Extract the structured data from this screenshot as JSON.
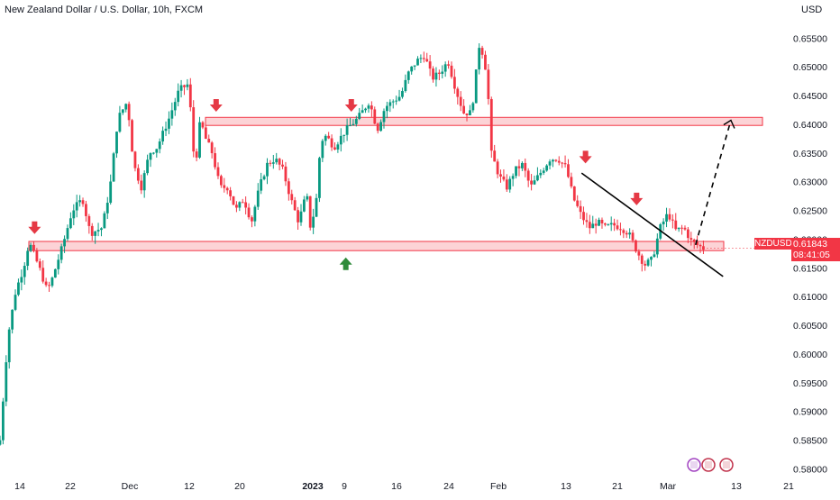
{
  "chart_data": {
    "type": "candlestick",
    "title": "New Zealand Dollar / U.S. Dollar, 10h, FXCM",
    "currency": "USD",
    "symbol": "NZDUSD",
    "last_price": "0.61843",
    "countdown": "08:41:05",
    "y_ticks": [
      "0.65500",
      "0.65000",
      "0.64500",
      "0.64000",
      "0.63500",
      "0.63000",
      "0.62500",
      "0.62000",
      "0.61500",
      "0.61000",
      "0.60500",
      "0.60000",
      "0.59500",
      "0.59000",
      "0.58500",
      "0.58000"
    ],
    "ylim": [
      0.5785,
      0.6585
    ],
    "x_tick_labels": [
      "14",
      "22",
      "Dec",
      "12",
      "20",
      "2023",
      "9",
      "16",
      "24",
      "Feb",
      "13",
      "21",
      "Mar",
      "13",
      "21"
    ],
    "close_path": [
      [
        0,
        0.585
      ],
      [
        0.01,
        0.603
      ],
      [
        0.02,
        0.611
      ],
      [
        0.03,
        0.615
      ],
      [
        0.037,
        0.6195
      ],
      [
        0.05,
        0.615
      ],
      [
        0.06,
        0.611
      ],
      [
        0.065,
        0.6125
      ],
      [
        0.08,
        0.619
      ],
      [
        0.092,
        0.625
      ],
      [
        0.105,
        0.627
      ],
      [
        0.115,
        0.621
      ],
      [
        0.13,
        0.622
      ],
      [
        0.14,
        0.629
      ],
      [
        0.15,
        0.641
      ],
      [
        0.162,
        0.644
      ],
      [
        0.17,
        0.633
      ],
      [
        0.18,
        0.629
      ],
      [
        0.19,
        0.635
      ],
      [
        0.2,
        0.636
      ],
      [
        0.215,
        0.641
      ],
      [
        0.228,
        0.646
      ],
      [
        0.24,
        0.647
      ],
      [
        0.248,
        0.632
      ],
      [
        0.255,
        0.641
      ],
      [
        0.26,
        0.638
      ],
      [
        0.27,
        0.635
      ],
      [
        0.28,
        0.629
      ],
      [
        0.29,
        0.629
      ],
      [
        0.3,
        0.625
      ],
      [
        0.31,
        0.627
      ],
      [
        0.32,
        0.623
      ],
      [
        0.33,
        0.629
      ],
      [
        0.34,
        0.633
      ],
      [
        0.35,
        0.634
      ],
      [
        0.36,
        0.632
      ],
      [
        0.37,
        0.627
      ],
      [
        0.38,
        0.623
      ],
      [
        0.39,
        0.628
      ],
      [
        0.395,
        0.622
      ],
      [
        0.402,
        0.626
      ],
      [
        0.408,
        0.637
      ],
      [
        0.415,
        0.638
      ],
      [
        0.425,
        0.636
      ],
      [
        0.44,
        0.639
      ],
      [
        0.455,
        0.641
      ],
      [
        0.47,
        0.644
      ],
      [
        0.48,
        0.639
      ],
      [
        0.49,
        0.643
      ],
      [
        0.5,
        0.644
      ],
      [
        0.51,
        0.645
      ],
      [
        0.52,
        0.649
      ],
      [
        0.53,
        0.651
      ],
      [
        0.54,
        0.652
      ],
      [
        0.55,
        0.648
      ],
      [
        0.56,
        0.649
      ],
      [
        0.57,
        0.651
      ],
      [
        0.58,
        0.646
      ],
      [
        0.59,
        0.642
      ],
      [
        0.6,
        0.642
      ],
      [
        0.61,
        0.654
      ],
      [
        0.615,
        0.652
      ],
      [
        0.62,
        0.648
      ],
      [
        0.625,
        0.635
      ],
      [
        0.635,
        0.631
      ],
      [
        0.645,
        0.629
      ],
      [
        0.655,
        0.632
      ],
      [
        0.665,
        0.633
      ],
      [
        0.675,
        0.629
      ],
      [
        0.69,
        0.632
      ],
      [
        0.7,
        0.634
      ],
      [
        0.71,
        0.634
      ],
      [
        0.72,
        0.6325
      ],
      [
        0.73,
        0.627
      ],
      [
        0.74,
        0.624
      ],
      [
        0.75,
        0.622
      ],
      [
        0.76,
        0.623
      ],
      [
        0.77,
        0.622
      ],
      [
        0.78,
        0.6225
      ],
      [
        0.79,
        0.622
      ],
      [
        0.8,
        0.621
      ],
      [
        0.81,
        0.618
      ],
      [
        0.82,
        0.6155
      ],
      [
        0.83,
        0.6165
      ],
      [
        0.84,
        0.622
      ],
      [
        0.85,
        0.6245
      ],
      [
        0.86,
        0.6215
      ],
      [
        0.87,
        0.622
      ],
      [
        0.88,
        0.6195
      ],
      [
        0.895,
        0.6184
      ]
    ],
    "zones": [
      {
        "low": 0.6398,
        "high": 0.6412
      },
      {
        "low": 0.618,
        "high": 0.6196
      }
    ],
    "trendline": {
      "start": [
        0.74,
        0.6315
      ],
      "end": [
        0.92,
        0.6135
      ]
    },
    "projection": {
      "start": [
        0.885,
        0.619
      ],
      "end": [
        0.93,
        0.6407
      ]
    },
    "markers": [
      {
        "type": "down",
        "x": 0.044,
        "price": 0.6212
      },
      {
        "type": "down",
        "x": 0.275,
        "price": 0.6425
      },
      {
        "type": "down",
        "x": 0.447,
        "price": 0.6425
      },
      {
        "type": "up",
        "x": 0.44,
        "price": 0.6165
      },
      {
        "type": "down",
        "x": 0.745,
        "price": 0.6335
      },
      {
        "type": "down",
        "x": 0.81,
        "price": 0.6262
      }
    ],
    "colors": {
      "up": "#089981",
      "down": "#f23645",
      "zone_fill": "rgba(242,54,69,0.22)",
      "zone_border": "#f23645",
      "marker_down": "#e53945",
      "marker_up": "#2e8b3a",
      "trendline": "#000000",
      "badge": "#f23645"
    }
  }
}
